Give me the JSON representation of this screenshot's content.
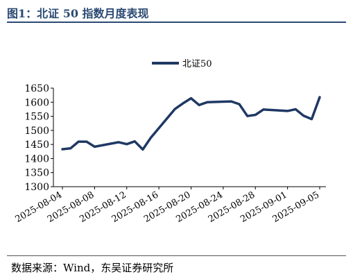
{
  "figure": {
    "title": "图1：北证 50 指数月度表现",
    "source": "数据来源：Wind，东吴证券研究所"
  },
  "chart_data": {
    "type": "line",
    "title": "",
    "xlabel": "",
    "ylabel": "",
    "legend_position": "top-center",
    "grid": false,
    "ylim": [
      1300,
      1650
    ],
    "yticks": [
      1300,
      1350,
      1400,
      1450,
      1500,
      1550,
      1600,
      1650
    ],
    "xlim": [
      "2025-08-04",
      "2025-09-05"
    ],
    "xticks": [
      "2025-08-04",
      "2025-08-08",
      "2025-08-12",
      "2025-08-16",
      "2025-08-20",
      "2025-08-24",
      "2025-08-28",
      "2025-09-01",
      "2025-09-05"
    ],
    "color": "#1f3864",
    "series": [
      {
        "name": "北证50",
        "points": [
          {
            "x": "2025-08-04",
            "y": 1433
          },
          {
            "x": "2025-08-05",
            "y": 1436
          },
          {
            "x": "2025-08-06",
            "y": 1460
          },
          {
            "x": "2025-08-07",
            "y": 1460
          },
          {
            "x": "2025-08-08",
            "y": 1442
          },
          {
            "x": "2025-08-11",
            "y": 1458
          },
          {
            "x": "2025-08-12",
            "y": 1451
          },
          {
            "x": "2025-08-13",
            "y": 1461
          },
          {
            "x": "2025-08-14",
            "y": 1432
          },
          {
            "x": "2025-08-15",
            "y": 1474
          },
          {
            "x": "2025-08-18",
            "y": 1576
          },
          {
            "x": "2025-08-19",
            "y": 1596
          },
          {
            "x": "2025-08-20",
            "y": 1614
          },
          {
            "x": "2025-08-21",
            "y": 1590
          },
          {
            "x": "2025-08-22",
            "y": 1600
          },
          {
            "x": "2025-08-25",
            "y": 1603
          },
          {
            "x": "2025-08-26",
            "y": 1593
          },
          {
            "x": "2025-08-27",
            "y": 1551
          },
          {
            "x": "2025-08-28",
            "y": 1555
          },
          {
            "x": "2025-08-29",
            "y": 1574
          },
          {
            "x": "2025-09-01",
            "y": 1569
          },
          {
            "x": "2025-09-02",
            "y": 1575
          },
          {
            "x": "2025-09-03",
            "y": 1552
          },
          {
            "x": "2025-09-04",
            "y": 1540
          },
          {
            "x": "2025-09-05",
            "y": 1618
          }
        ]
      }
    ]
  }
}
